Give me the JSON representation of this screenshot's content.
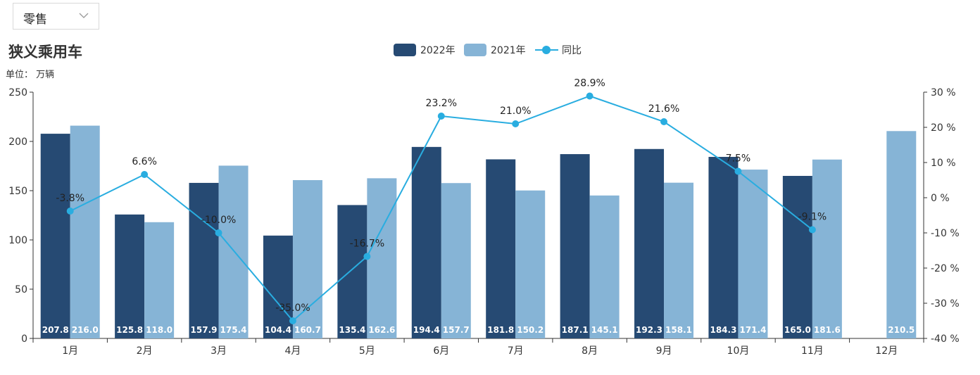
{
  "filter": {
    "selected": "零售",
    "icon": "chevron-down-icon"
  },
  "title": "狭义乘用车",
  "unit_label": "单位： 万辆",
  "colors": {
    "bar2022": "#264a73",
    "bar2021": "#86b4d6",
    "line": "#29ade0"
  },
  "chart_data": {
    "type": "bar",
    "categories": [
      "1月",
      "2月",
      "3月",
      "4月",
      "5月",
      "6月",
      "7月",
      "8月",
      "9月",
      "10月",
      "11月",
      "12月"
    ],
    "series": [
      {
        "name": "2022年",
        "type": "bar",
        "values": [
          207.8,
          125.8,
          157.9,
          104.4,
          135.4,
          194.4,
          181.8,
          187.1,
          192.3,
          184.3,
          165.0,
          null
        ],
        "labels": [
          "207.8",
          "125.8",
          "157.9",
          "104.4",
          "135.4",
          "194.4",
          "181.8",
          "187.1",
          "192.3",
          "184.3",
          "165.0",
          ""
        ]
      },
      {
        "name": "2021年",
        "type": "bar",
        "values": [
          216.0,
          118.0,
          175.4,
          160.7,
          162.6,
          157.7,
          150.2,
          145.1,
          158.1,
          171.4,
          181.6,
          210.5
        ],
        "labels": [
          "216.0",
          "118.0",
          "175.4",
          "160.7",
          "162.6",
          "157.7",
          "150.2",
          "145.1",
          "158.1",
          "171.4",
          "181.6",
          "210.5"
        ]
      },
      {
        "name": "同比",
        "type": "line",
        "axis": "right",
        "values": [
          -3.8,
          6.6,
          -10.0,
          -35.0,
          -16.7,
          23.2,
          21.0,
          28.9,
          21.6,
          7.5,
          -9.1,
          null
        ],
        "labels": [
          "-3.8%",
          "6.6%",
          "-10.0%",
          "-35.0%",
          "-16.7%",
          "23.2%",
          "21.0%",
          "28.9%",
          "21.6%",
          "7.5%",
          "-9.1%",
          ""
        ]
      }
    ],
    "y_left": {
      "min": 0,
      "max": 250,
      "ticks": [
        "0",
        "50",
        "100",
        "150",
        "200",
        "250"
      ]
    },
    "y_right": {
      "min": -40,
      "max": 30,
      "ticks": [
        "-40 %",
        "-30 %",
        "-20 %",
        "-10 %",
        "0 %",
        "10 %",
        "20 %",
        "30 %"
      ]
    },
    "legend_position": "top-center"
  }
}
